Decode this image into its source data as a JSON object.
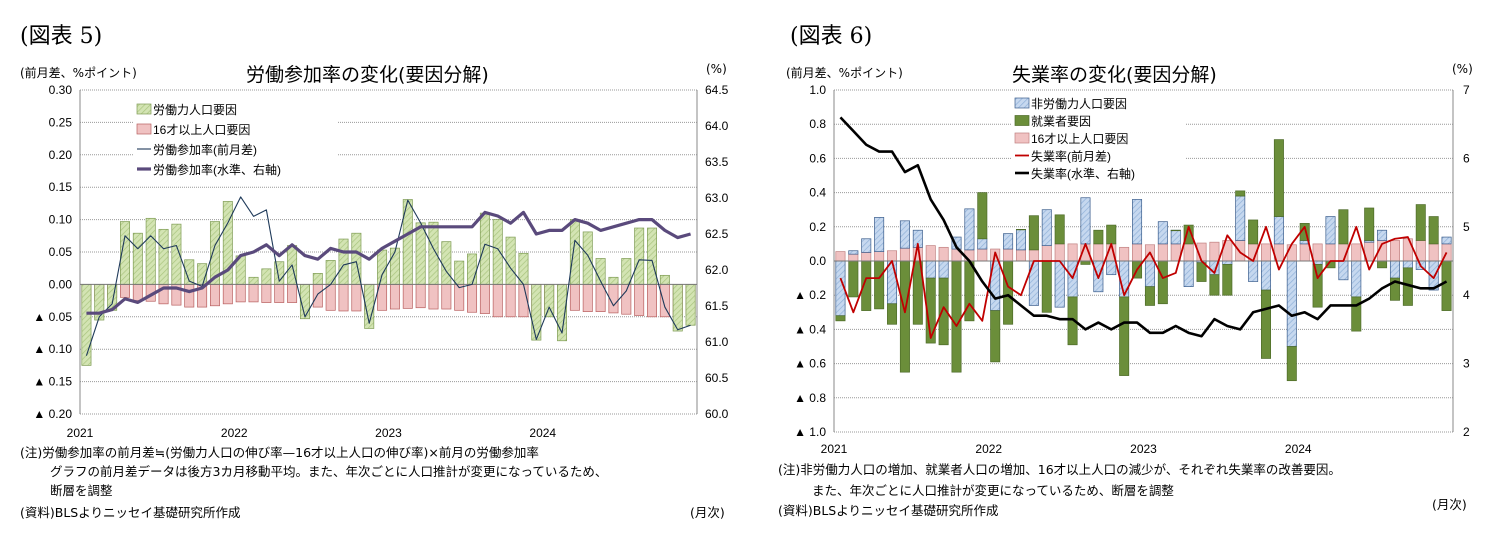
{
  "chart_data": [
    {
      "figure_label": "(図表 5)",
      "title": "労働参加率の変化(要因分解)",
      "ylabel": "(前月差、%ポイント)",
      "ylabel_right": "(%)",
      "type": "bar+line",
      "ylim": [
        -0.2,
        0.3
      ],
      "ylim_right": [
        60.0,
        64.5
      ],
      "yticks": [
        0.3,
        0.25,
        0.2,
        0.15,
        0.1,
        0.05,
        0.0,
        -0.05,
        -0.1,
        -0.15,
        -0.2
      ],
      "ytick_labels": [
        "0.30",
        "0.25",
        "0.20",
        "0.15",
        "0.10",
        "0.05",
        "0.00",
        "▲ 0.05",
        "▲ 0.10",
        "▲ 0.15",
        "▲ 0.20"
      ],
      "yticks_right": [
        64.5,
        64.0,
        63.5,
        63.0,
        62.5,
        62.0,
        61.5,
        61.0,
        60.5,
        60.0
      ],
      "ytick_labels_right": [
        "64.5",
        "64.0",
        "63.5",
        "63.0",
        "62.5",
        "62.0",
        "61.5",
        "61.0",
        "60.5",
        "60.0"
      ],
      "x_labels": [
        "2021",
        "2022",
        "2023",
        "2024"
      ],
      "months": 48,
      "series": [
        {
          "name": "労働力人口要因",
          "kind": "bar",
          "color": "#d3e4b3",
          "values": [
            -0.125,
            -0.055,
            -0.04,
            0.097,
            0.079,
            0.102,
            0.085,
            0.093,
            0.038,
            0.032,
            0.097,
            0.128,
            0.044,
            0.011,
            0.024,
            0.035,
            0.06,
            -0.053,
            0.017,
            0.037,
            0.07,
            0.079,
            -0.068,
            0.053,
            0.056,
            0.131,
            0.095,
            0.096,
            0.066,
            0.036,
            0.047,
            0.11,
            0.1,
            0.073,
            0.048,
            -0.086,
            -0.05,
            -0.087,
            0.1,
            0.081,
            0.04,
            0.011,
            0.04,
            0.087,
            0.087,
            0.014,
            -0.072,
            -0.063
          ]
        },
        {
          "name": "16才以上人口要因",
          "kind": "bar",
          "color": "#f0c2c2",
          "values": [
            -0.031,
            -0.025,
            -0.02,
            -0.02,
            -0.025,
            -0.026,
            -0.03,
            -0.032,
            -0.035,
            -0.035,
            -0.033,
            -0.03,
            -0.027,
            -0.027,
            -0.028,
            -0.028,
            -0.028,
            -0.035,
            -0.035,
            -0.04,
            -0.041,
            -0.041,
            -0.04,
            -0.04,
            -0.038,
            -0.037,
            -0.036,
            -0.038,
            -0.038,
            -0.04,
            -0.043,
            -0.045,
            -0.05,
            -0.05,
            -0.05,
            -0.048,
            -0.045,
            -0.042,
            -0.04,
            -0.042,
            -0.042,
            -0.044,
            -0.046,
            -0.048,
            -0.05,
            -0.05,
            -0.048,
            -0.045
          ]
        },
        {
          "name": "労働参加率(前月差)",
          "kind": "line",
          "color": "#1f3a5a",
          "values": [
            -0.11,
            -0.05,
            -0.03,
            0.075,
            0.055,
            0.075,
            0.055,
            0.06,
            0.005,
            -0.003,
            0.06,
            0.095,
            0.135,
            0.105,
            0.115,
            0.005,
            0.03,
            -0.05,
            -0.015,
            0.0,
            0.03,
            0.035,
            -0.06,
            0.015,
            0.05,
            0.13,
            0.095,
            0.055,
            0.02,
            -0.005,
            0.0,
            0.062,
            0.055,
            0.025,
            0.0,
            -0.085,
            -0.035,
            -0.075,
            0.068,
            0.045,
            0.005,
            -0.033,
            -0.01,
            0.038,
            0.037,
            -0.035,
            -0.07,
            -0.063
          ]
        },
        {
          "name": "労働参加率(水準、右軸)",
          "kind": "line",
          "axis": "right",
          "color": "#5a4a7c",
          "values": [
            61.4,
            61.4,
            61.45,
            61.6,
            61.55,
            61.65,
            61.75,
            61.75,
            61.7,
            61.75,
            61.9,
            62.0,
            62.2,
            62.25,
            62.35,
            62.2,
            62.35,
            62.2,
            62.15,
            62.3,
            62.25,
            62.25,
            62.15,
            62.3,
            62.4,
            62.5,
            62.6,
            62.6,
            62.6,
            62.6,
            62.6,
            62.8,
            62.75,
            62.65,
            62.8,
            62.5,
            62.55,
            62.55,
            62.7,
            62.65,
            62.55,
            62.6,
            62.65,
            62.7,
            62.7,
            62.55,
            62.45,
            62.5
          ]
        }
      ],
      "legend_position": "top-left",
      "notes": [
        "(注)労働参加率の前月差≒(労働力人口の伸び率—16才以上人口の伸び率)×前月の労働参加率",
        "グラフの前月差データは後方3カ月移動平均。また、年次ごとに人口推計が変更になっているため、",
        "断層を調整"
      ],
      "source": "(資料)BLSよりニッセイ基礎研究所作成",
      "xunit": "(月次)"
    },
    {
      "figure_label": "(図表 6)",
      "title": "失業率の変化(要因分解)",
      "ylabel": "(前月差、%ポイント)",
      "ylabel_right": "(%)",
      "type": "bar+line",
      "ylim": [
        -1.0,
        1.0
      ],
      "ylim_right": [
        2,
        7
      ],
      "yticks": [
        1.0,
        0.8,
        0.6,
        0.4,
        0.2,
        0.0,
        -0.2,
        -0.4,
        -0.6,
        -0.8,
        -1.0
      ],
      "ytick_labels": [
        "1.0",
        "0.8",
        "0.6",
        "0.4",
        "0.2",
        "0.0",
        "▲ 0.2",
        "▲ 0.4",
        "▲ 0.6",
        "▲ 0.8",
        "▲ 1.0"
      ],
      "yticks_right": [
        7,
        6,
        5,
        4,
        3,
        2
      ],
      "ytick_labels_right": [
        "7",
        "6",
        "5",
        "4",
        "3",
        "2"
      ],
      "x_labels": [
        "2021",
        "2022",
        "2023",
        "2024"
      ],
      "months": 48,
      "series": [
        {
          "name": "非労働力人口要因",
          "kind": "bar",
          "color": "#c6d8ef",
          "values": [
            -0.32,
            0.02,
            0.08,
            0.2,
            -0.25,
            0.16,
            0.1,
            -0.1,
            -0.1,
            0.07,
            0.24,
            0.06,
            -0.29,
            0.09,
            0.12,
            -0.26,
            0.21,
            -0.27,
            -0.21,
            0.27,
            -0.18,
            -0.08,
            -0.21,
            0.26,
            -0.15,
            0.13,
            0.08,
            -0.15,
            -0.01,
            -0.08,
            -0.02,
            0.26,
            -0.12,
            -0.17,
            0.16,
            -0.5,
            0.02,
            -0.02,
            0.16,
            -0.11,
            -0.21,
            0.01,
            0.06,
            -0.1,
            -0.04,
            -0.05,
            -0.17,
            0.04
          ]
        },
        {
          "name": "就業者要因",
          "kind": "bar",
          "color": "#6b8e3a",
          "values": [
            -0.03,
            -0.21,
            -0.29,
            -0.28,
            -0.12,
            -0.65,
            -0.37,
            -0.38,
            -0.39,
            -0.65,
            -0.35,
            0.27,
            -0.3,
            -0.37,
            0.0,
            0.2,
            -0.3,
            0.17,
            -0.28,
            -0.02,
            0.08,
            0.11,
            -0.46,
            -0.1,
            -0.11,
            -0.25,
            0.0,
            0.11,
            -0.11,
            -0.12,
            -0.18,
            0.03,
            0.14,
            -0.4,
            0.45,
            -0.2,
            0.1,
            -0.25,
            -0.04,
            0.2,
            -0.2,
            0.19,
            -0.04,
            -0.13,
            -0.22,
            0.21,
            0.16,
            -0.29
          ]
        },
        {
          "name": "16才以上人口要因",
          "kind": "bar",
          "color": "#f0c2c2",
          "values": [
            0.055,
            0.04,
            0.05,
            0.055,
            0.06,
            0.075,
            0.08,
            0.09,
            0.08,
            0.07,
            0.065,
            0.07,
            0.07,
            0.07,
            0.065,
            0.065,
            0.09,
            0.1,
            0.1,
            0.1,
            0.1,
            0.1,
            0.08,
            0.1,
            0.095,
            0.1,
            0.1,
            0.1,
            0.105,
            0.11,
            0.12,
            0.12,
            0.1,
            0.1,
            0.1,
            0.095,
            0.1,
            0.1,
            0.1,
            0.1,
            0.1,
            0.11,
            0.12,
            0.12,
            0.13,
            0.12,
            0.1,
            0.1
          ]
        },
        {
          "name": "失業率(前月差)",
          "kind": "line",
          "color": "#c00000",
          "values": [
            -0.1,
            -0.3,
            -0.1,
            -0.1,
            0.0,
            -0.3,
            0.1,
            -0.45,
            -0.27,
            -0.38,
            -0.25,
            -0.35,
            0.05,
            -0.15,
            -0.2,
            0.0,
            0.0,
            0.0,
            -0.1,
            0.1,
            -0.1,
            0.1,
            -0.2,
            -0.05,
            0.05,
            -0.1,
            -0.07,
            0.2,
            0.0,
            -0.07,
            0.15,
            0.05,
            0.0,
            0.2,
            -0.05,
            0.1,
            0.2,
            -0.1,
            0.0,
            0.0,
            0.2,
            -0.05,
            0.1,
            0.13,
            0.14,
            -0.03,
            -0.1,
            0.05
          ]
        },
        {
          "name": "失業率(水準、右軸)",
          "kind": "line",
          "axis": "right",
          "color": "#000000",
          "values": [
            6.6,
            6.4,
            6.2,
            6.1,
            6.1,
            5.8,
            5.9,
            5.4,
            5.1,
            4.7,
            4.5,
            4.2,
            3.95,
            4.0,
            3.85,
            3.7,
            3.7,
            3.65,
            3.65,
            3.5,
            3.6,
            3.5,
            3.6,
            3.6,
            3.45,
            3.45,
            3.55,
            3.45,
            3.4,
            3.65,
            3.55,
            3.5,
            3.75,
            3.8,
            3.85,
            3.7,
            3.75,
            3.65,
            3.85,
            3.85,
            3.85,
            3.95,
            4.1,
            4.2,
            4.15,
            4.1,
            4.1,
            4.2
          ]
        }
      ],
      "legend_position": "top-center",
      "notes": [
        "(注)非労働力人口の増加、就業者人口の増加、16才以上人口の減少が、それぞれ失業率の改善要因。",
        "また、年次ごとに人口推計が変更になっているため、断層を調整"
      ],
      "source": "(資料)BLSよりニッセイ基礎研究所作成",
      "xunit": "(月次)"
    }
  ]
}
